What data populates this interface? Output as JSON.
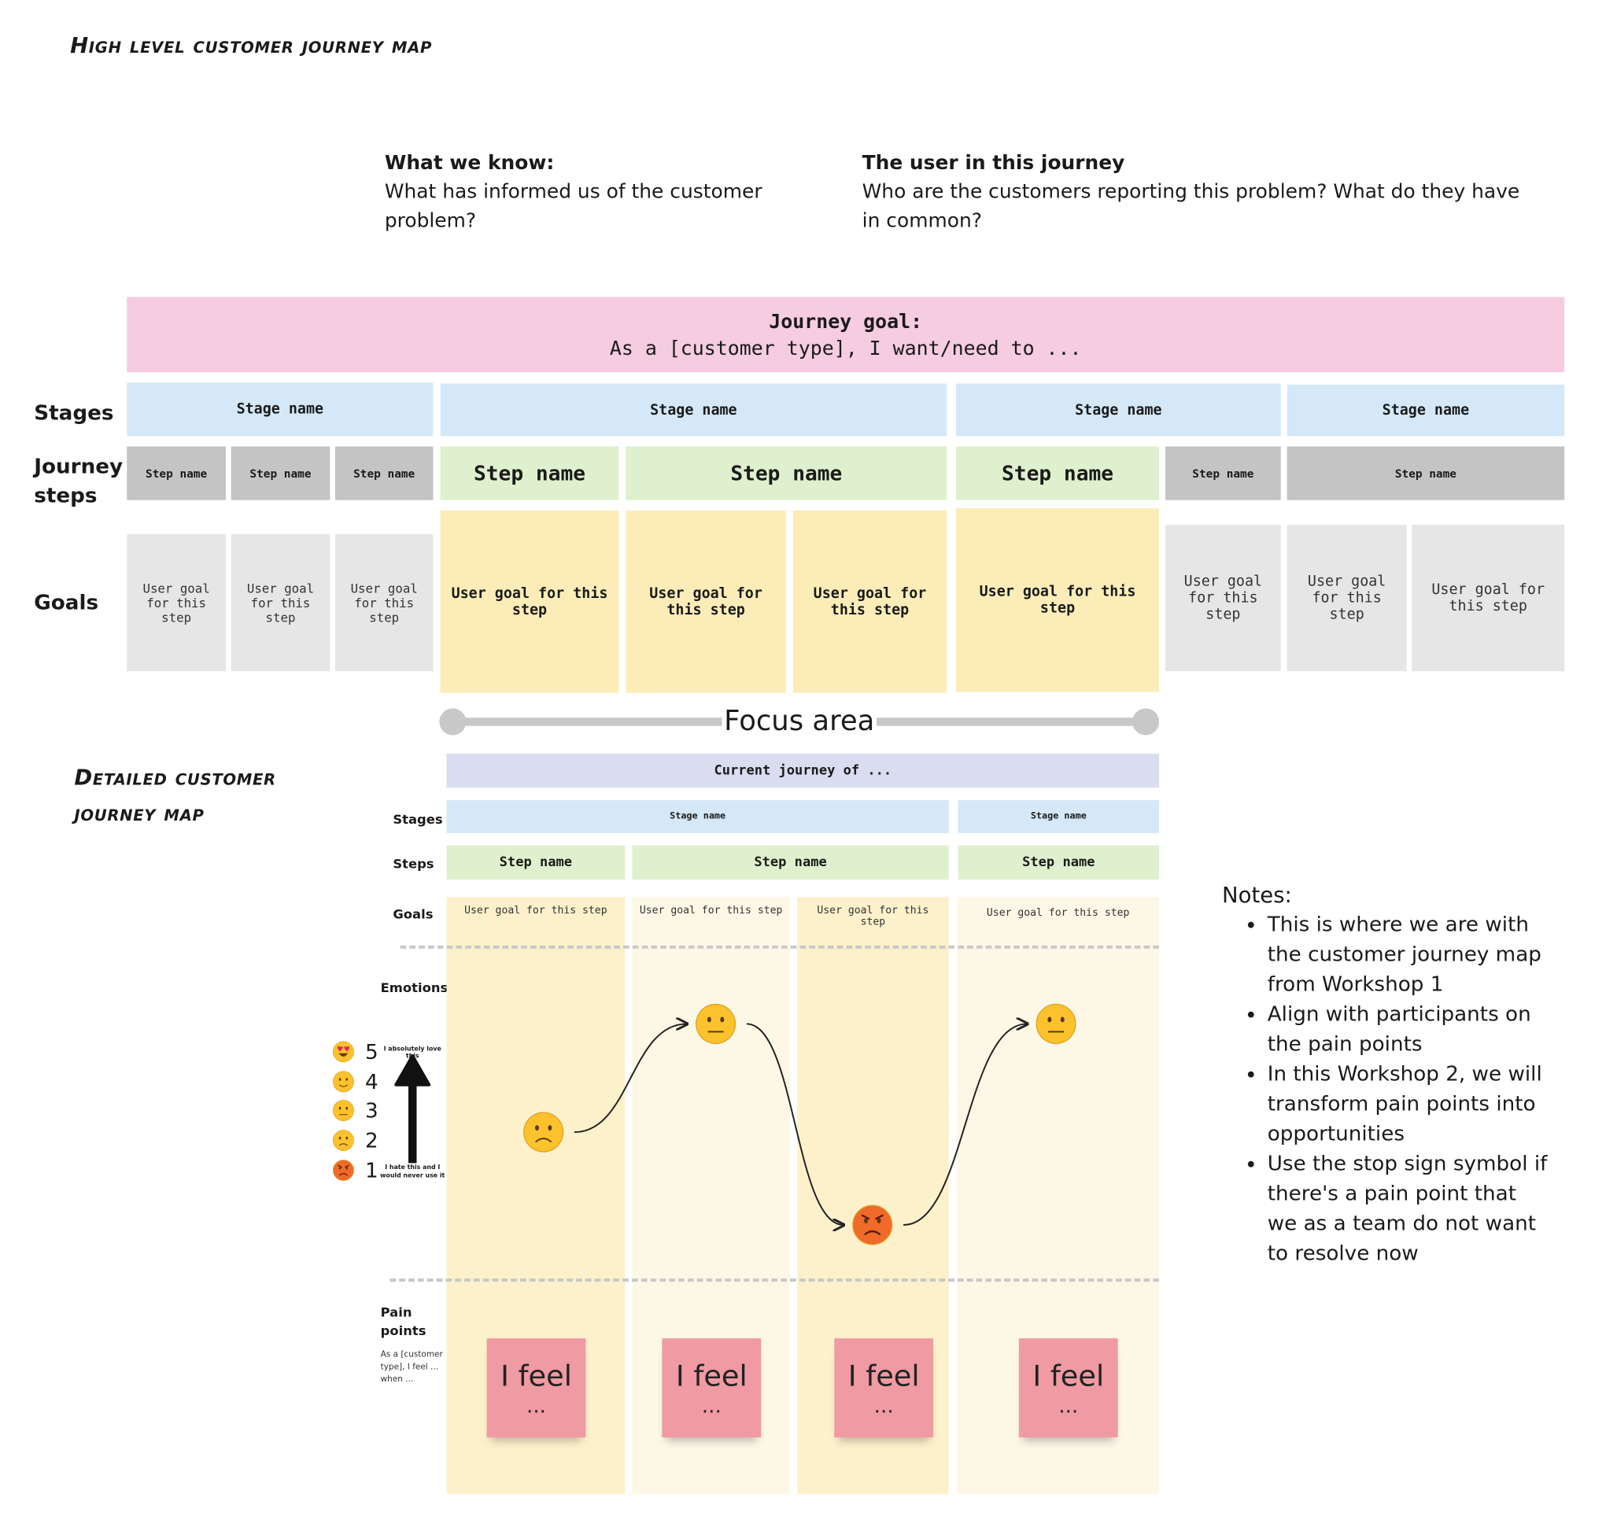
{
  "title": "High level customer journey map",
  "what_we_know": {
    "heading": "What we know:",
    "text": "What has informed us of the customer problem?"
  },
  "user_in_journey": {
    "heading": "The user in this journey",
    "text": "Who are the customers reporting this problem? What do they have in common?"
  },
  "journey_goal": {
    "heading": "Journey goal:",
    "text": "As a [customer type], I want/need to ..."
  },
  "row_labels": {
    "stages": "Stages",
    "journey_steps": "Journey steps",
    "goals": "Goals"
  },
  "high_level": {
    "stages": [
      "Stage name",
      "Stage name",
      "Stage name",
      "Stage name"
    ],
    "steps": [
      "Step name",
      "Step name",
      "Step name",
      "Step name",
      "Step name",
      "Step name",
      "Step name",
      "Step name"
    ],
    "goals": [
      "User goal for this step",
      "User goal for this step",
      "User goal for this step",
      "User goal for this step",
      "User goal for this step",
      "User goal for this step",
      "User goal for this step",
      "User goal for this step",
      "User goal for this step",
      "User goal for this step"
    ]
  },
  "focus_area": "Focus area",
  "detailed": {
    "title": "Detailed customer journey map",
    "header": "Current journey of ...",
    "labels": {
      "stages": "Stages",
      "steps": "Steps",
      "goals": "Goals",
      "emotions": "Emotions",
      "pain_points": "Pain points",
      "pain_hint": "As a [customer type], I feel ... when ..."
    },
    "stages": [
      "Stage name",
      "Stage name"
    ],
    "steps": [
      "Step name",
      "Step name",
      "Step name"
    ],
    "goals": [
      "User goal for this step",
      "User goal for this step",
      "User goal for this step",
      "User goal for this step"
    ],
    "emotion_scale": [
      {
        "value": "5",
        "icon": "heart-eyes-emoji"
      },
      {
        "value": "4",
        "icon": "smile-emoji"
      },
      {
        "value": "3",
        "icon": "neutral-emoji"
      },
      {
        "value": "2",
        "icon": "frown-emoji"
      },
      {
        "value": "1",
        "icon": "angry-emoji"
      }
    ],
    "scale_top": "I absolutely love this",
    "scale_bottom": "I hate this and I would never use it",
    "emotions": [
      2,
      3,
      1,
      3
    ],
    "pain_points": [
      {
        "line1": "I feel",
        "line2": "..."
      },
      {
        "line1": "I feel",
        "line2": "..."
      },
      {
        "line1": "I feel",
        "line2": "..."
      },
      {
        "line1": "I feel",
        "line2": "..."
      }
    ]
  },
  "notes": {
    "heading": "Notes:",
    "items": [
      "This is where we are with the customer journey map from Workshop 1",
      "Align with participants on the pain points",
      "In this Workshop 2, we will transform pain points into opportunities",
      "Use the stop sign symbol if there's a pain point that we as a team do not want to resolve now"
    ]
  },
  "colors": {
    "goal_pink": "#f5cce0",
    "stage_blue": "#d5e8f8",
    "step_green": "#def0cd",
    "goal_yellow": "#fcedb8",
    "sticky_pink": "#f09aa3",
    "header_lavender": "#dadcf0"
  }
}
